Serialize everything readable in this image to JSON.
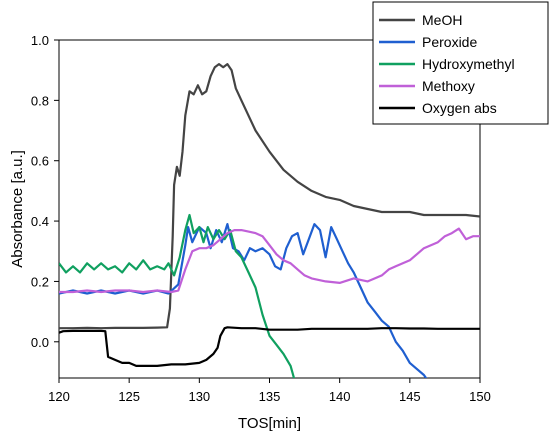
{
  "chart_data": {
    "type": "line",
    "xlabel": "TOS[min]",
    "ylabel": "Absorbance [a.u.]",
    "xlim": [
      120,
      150
    ],
    "ylim": [
      -0.12,
      1.0
    ],
    "xticks": [
      120,
      125,
      130,
      135,
      140,
      145,
      150
    ],
    "yticks": [
      0.0,
      0.2,
      0.4,
      0.6,
      0.8,
      1.0
    ],
    "xtick_labels": [
      "120",
      "125",
      "130",
      "135",
      "140",
      "145",
      "150"
    ],
    "ytick_labels": [
      "0.0",
      "0.2",
      "0.4",
      "0.6",
      "0.8",
      "1.0"
    ],
    "grid": false,
    "legend_position": "top-right",
    "series": [
      {
        "name": "MeOH",
        "color": "#444444",
        "points": [
          [
            120,
            0.045
          ],
          [
            121,
            0.045
          ],
          [
            122,
            0.046
          ],
          [
            123,
            0.045
          ],
          [
            124,
            0.046
          ],
          [
            125,
            0.046
          ],
          [
            126,
            0.046
          ],
          [
            127,
            0.047
          ],
          [
            127.7,
            0.048
          ],
          [
            127.9,
            0.11
          ],
          [
            128.1,
            0.35
          ],
          [
            128.2,
            0.52
          ],
          [
            128.4,
            0.58
          ],
          [
            128.6,
            0.55
          ],
          [
            128.8,
            0.63
          ],
          [
            129,
            0.75
          ],
          [
            129.3,
            0.83
          ],
          [
            129.6,
            0.82
          ],
          [
            129.9,
            0.85
          ],
          [
            130.2,
            0.82
          ],
          [
            130.5,
            0.83
          ],
          [
            130.8,
            0.88
          ],
          [
            131.1,
            0.91
          ],
          [
            131.4,
            0.92
          ],
          [
            131.7,
            0.91
          ],
          [
            132,
            0.92
          ],
          [
            132.3,
            0.9
          ],
          [
            132.6,
            0.84
          ],
          [
            133,
            0.8
          ],
          [
            134,
            0.7
          ],
          [
            135,
            0.63
          ],
          [
            136,
            0.57
          ],
          [
            137,
            0.53
          ],
          [
            138,
            0.5
          ],
          [
            139,
            0.48
          ],
          [
            140,
            0.47
          ],
          [
            141,
            0.45
          ],
          [
            142,
            0.44
          ],
          [
            143,
            0.43
          ],
          [
            144,
            0.43
          ],
          [
            145,
            0.43
          ],
          [
            146,
            0.42
          ],
          [
            147,
            0.42
          ],
          [
            148,
            0.42
          ],
          [
            149,
            0.42
          ],
          [
            150,
            0.415
          ]
        ]
      },
      {
        "name": "Peroxide",
        "color": "#1f5fd0",
        "points": [
          [
            120,
            0.16
          ],
          [
            121,
            0.17
          ],
          [
            122,
            0.16
          ],
          [
            123,
            0.17
          ],
          [
            124,
            0.16
          ],
          [
            125,
            0.17
          ],
          [
            126,
            0.16
          ],
          [
            127,
            0.17
          ],
          [
            127.8,
            0.16
          ],
          [
            128.5,
            0.19
          ],
          [
            129,
            0.32
          ],
          [
            129.2,
            0.38
          ],
          [
            129.5,
            0.33
          ],
          [
            130,
            0.38
          ],
          [
            130.5,
            0.36
          ],
          [
            130.8,
            0.31
          ],
          [
            131.2,
            0.37
          ],
          [
            131.6,
            0.33
          ],
          [
            132,
            0.39
          ],
          [
            132.4,
            0.31
          ],
          [
            132.8,
            0.3
          ],
          [
            133.2,
            0.27
          ],
          [
            133.6,
            0.31
          ],
          [
            134,
            0.3
          ],
          [
            134.5,
            0.31
          ],
          [
            135,
            0.29
          ],
          [
            135.4,
            0.25
          ],
          [
            135.8,
            0.24
          ],
          [
            136.2,
            0.31
          ],
          [
            136.6,
            0.35
          ],
          [
            137,
            0.36
          ],
          [
            137.4,
            0.29
          ],
          [
            137.8,
            0.34
          ],
          [
            138.2,
            0.39
          ],
          [
            138.6,
            0.37
          ],
          [
            139,
            0.28
          ],
          [
            139.4,
            0.38
          ],
          [
            139.8,
            0.34
          ],
          [
            140.2,
            0.3
          ],
          [
            140.6,
            0.26
          ],
          [
            141,
            0.23
          ],
          [
            141.5,
            0.18
          ],
          [
            142,
            0.13
          ],
          [
            142.5,
            0.1
          ],
          [
            143,
            0.07
          ],
          [
            143.5,
            0.05
          ],
          [
            144,
            0.0
          ],
          [
            144.5,
            -0.03
          ],
          [
            145,
            -0.07
          ],
          [
            145.5,
            -0.09
          ],
          [
            146,
            -0.11
          ],
          [
            146.3,
            -0.13
          ]
        ]
      },
      {
        "name": "Hydroxymethyl",
        "color": "#10a060",
        "points": [
          [
            120,
            0.26
          ],
          [
            120.5,
            0.23
          ],
          [
            121,
            0.25
          ],
          [
            121.5,
            0.23
          ],
          [
            122,
            0.26
          ],
          [
            122.5,
            0.24
          ],
          [
            123,
            0.26
          ],
          [
            123.5,
            0.24
          ],
          [
            124,
            0.25
          ],
          [
            124.5,
            0.23
          ],
          [
            125,
            0.26
          ],
          [
            125.5,
            0.24
          ],
          [
            126,
            0.27
          ],
          [
            126.5,
            0.24
          ],
          [
            127,
            0.25
          ],
          [
            127.5,
            0.24
          ],
          [
            127.8,
            0.26
          ],
          [
            128.2,
            0.22
          ],
          [
            128.6,
            0.28
          ],
          [
            129,
            0.37
          ],
          [
            129.3,
            0.42
          ],
          [
            129.6,
            0.36
          ],
          [
            130,
            0.38
          ],
          [
            130.3,
            0.33
          ],
          [
            130.6,
            0.38
          ],
          [
            131,
            0.34
          ],
          [
            131.4,
            0.37
          ],
          [
            131.8,
            0.34
          ],
          [
            132.2,
            0.37
          ],
          [
            132.6,
            0.3
          ],
          [
            133,
            0.28
          ],
          [
            133.5,
            0.23
          ],
          [
            134,
            0.18
          ],
          [
            134.5,
            0.09
          ],
          [
            135,
            0.02
          ],
          [
            135.5,
            -0.01
          ],
          [
            136,
            -0.04
          ],
          [
            136.5,
            -0.08
          ],
          [
            136.8,
            -0.13
          ]
        ]
      },
      {
        "name": "Methoxy",
        "color": "#c060d8",
        "points": [
          [
            120,
            0.165
          ],
          [
            121,
            0.165
          ],
          [
            122,
            0.17
          ],
          [
            123,
            0.165
          ],
          [
            124,
            0.17
          ],
          [
            125,
            0.17
          ],
          [
            126,
            0.165
          ],
          [
            127,
            0.17
          ],
          [
            128,
            0.165
          ],
          [
            128.5,
            0.17
          ],
          [
            129,
            0.24
          ],
          [
            129.5,
            0.3
          ],
          [
            130,
            0.31
          ],
          [
            130.5,
            0.31
          ],
          [
            131,
            0.32
          ],
          [
            131.5,
            0.34
          ],
          [
            132,
            0.36
          ],
          [
            132.5,
            0.37
          ],
          [
            133,
            0.37
          ],
          [
            133.5,
            0.365
          ],
          [
            134,
            0.36
          ],
          [
            134.5,
            0.35
          ],
          [
            135,
            0.32
          ],
          [
            135.5,
            0.29
          ],
          [
            136,
            0.27
          ],
          [
            136.5,
            0.26
          ],
          [
            137,
            0.24
          ],
          [
            137.5,
            0.22
          ],
          [
            138,
            0.21
          ],
          [
            139,
            0.2
          ],
          [
            140,
            0.195
          ],
          [
            141,
            0.21
          ],
          [
            142,
            0.2
          ],
          [
            142.5,
            0.21
          ],
          [
            143,
            0.22
          ],
          [
            143.5,
            0.24
          ],
          [
            144,
            0.25
          ],
          [
            144.5,
            0.26
          ],
          [
            145,
            0.27
          ],
          [
            145.5,
            0.29
          ],
          [
            146,
            0.31
          ],
          [
            146.5,
            0.32
          ],
          [
            147,
            0.33
          ],
          [
            147.5,
            0.35
          ],
          [
            148,
            0.36
          ],
          [
            148.5,
            0.375
          ],
          [
            149,
            0.34
          ],
          [
            149.5,
            0.35
          ],
          [
            150,
            0.35
          ]
        ]
      },
      {
        "name": "Oxygen abs",
        "color": "#000000",
        "points": [
          [
            120,
            0.03
          ],
          [
            120.3,
            0.035
          ],
          [
            121,
            0.036
          ],
          [
            122,
            0.036
          ],
          [
            123,
            0.036
          ],
          [
            123.3,
            0.035
          ],
          [
            123.5,
            -0.05
          ],
          [
            124,
            -0.06
          ],
          [
            124.5,
            -0.07
          ],
          [
            125,
            -0.07
          ],
          [
            125.5,
            -0.08
          ],
          [
            126,
            -0.08
          ],
          [
            127,
            -0.08
          ],
          [
            128,
            -0.075
          ],
          [
            129,
            -0.075
          ],
          [
            130,
            -0.07
          ],
          [
            130.5,
            -0.06
          ],
          [
            131,
            -0.04
          ],
          [
            131.3,
            -0.02
          ],
          [
            131.5,
            0.02
          ],
          [
            131.8,
            0.045
          ],
          [
            132,
            0.048
          ],
          [
            133,
            0.045
          ],
          [
            134,
            0.045
          ],
          [
            135,
            0.04
          ],
          [
            136,
            0.04
          ],
          [
            137,
            0.04
          ],
          [
            138,
            0.043
          ],
          [
            139,
            0.043
          ],
          [
            140,
            0.043
          ],
          [
            141,
            0.043
          ],
          [
            142,
            0.043
          ],
          [
            143,
            0.045
          ],
          [
            144,
            0.045
          ],
          [
            145,
            0.044
          ],
          [
            146,
            0.044
          ],
          [
            147,
            0.043
          ],
          [
            148,
            0.043
          ],
          [
            149,
            0.043
          ],
          [
            150,
            0.043
          ]
        ]
      }
    ]
  }
}
